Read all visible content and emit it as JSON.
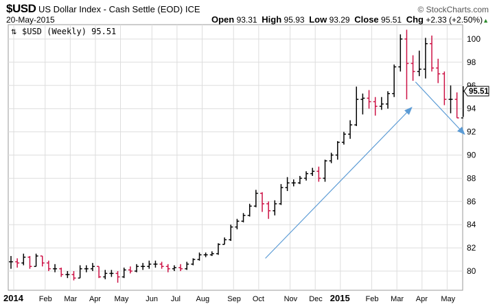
{
  "header": {
    "symbol": "$USD",
    "name": "US Dollar Index - Cash Settle (EOD) ICE",
    "logo": "© StockCharts.com",
    "date": "20-May-2015",
    "open_label": "Open",
    "open": "93.31",
    "high_label": "High",
    "high": "95.93",
    "low_label": "Low",
    "low": "93.29",
    "close_label": "Close",
    "close": "95.51",
    "chg_label": "Chg",
    "chg": "+2.33 (+2.50%)",
    "chg_arrow": "▲"
  },
  "chart_data": {
    "type": "ohlc-bar",
    "legend": "$USD (Weekly) 95.51",
    "last_price_label": "95.51",
    "ylim": [
      79,
      101
    ],
    "yticks": [
      80,
      82,
      84,
      86,
      88,
      90,
      92,
      94,
      96,
      98,
      100
    ],
    "xtick_labels": [
      "2014",
      "Feb",
      "Mar",
      "Apr",
      "May",
      "Jun",
      "Jul",
      "Aug",
      "Sep",
      "Oct",
      "Nov",
      "Dec",
      "2015",
      "Feb",
      "Mar",
      "Apr",
      "May"
    ],
    "xtick_weeks": [
      0,
      5,
      9,
      13,
      17,
      22,
      26,
      30,
      35,
      39,
      44,
      48,
      52,
      57,
      61,
      65,
      69
    ],
    "grid": true,
    "colors": {
      "up": "#000000",
      "down": "#cc1144",
      "arrow": "#5b9bd5",
      "grid": "#dddddd"
    },
    "close": [
      80.8,
      80.7,
      81.2,
      80.4,
      81.3,
      80.7,
      80.2,
      80.2,
      79.7,
      79.7,
      79.4,
      80.2,
      80.2,
      80.4,
      79.5,
      79.8,
      79.8,
      79.5,
      80.1,
      80.0,
      80.4,
      80.4,
      80.6,
      80.6,
      80.4,
      80.2,
      80.3,
      80.2,
      80.6,
      81.0,
      81.4,
      81.4,
      81.5,
      82.3,
      82.7,
      83.8,
      84.3,
      84.8,
      85.6,
      86.7,
      85.8,
      85.2,
      85.8,
      87.2,
      87.6,
      87.6,
      88.0,
      88.4,
      88.6,
      88.0,
      89.5,
      90.0,
      91.1,
      91.8,
      92.6,
      94.8,
      94.9,
      94.6,
      94.2,
      94.4,
      95.3,
      97.6,
      100.0,
      97.9,
      97.2,
      97.4,
      99.6,
      97.5,
      97.0,
      94.8,
      94.8,
      93.2,
      95.51
    ],
    "high": [
      81.3,
      81.1,
      81.5,
      81.3,
      81.5,
      81.3,
      80.9,
      80.6,
      80.3,
      80.0,
      80.0,
      80.5,
      80.5,
      80.7,
      80.4,
      80.1,
      80.1,
      80.0,
      80.3,
      80.4,
      80.6,
      80.7,
      80.9,
      80.9,
      80.8,
      80.6,
      80.5,
      80.6,
      80.8,
      81.1,
      81.6,
      81.6,
      81.7,
      82.4,
      82.9,
      84.0,
      84.5,
      85.0,
      85.8,
      87.0,
      86.8,
      86.0,
      86.1,
      87.5,
      88.1,
      87.9,
      88.2,
      88.6,
      88.9,
      89.0,
      89.6,
      90.2,
      91.2,
      92.0,
      93.0,
      95.9,
      95.3,
      95.6,
      95.0,
      95.0,
      95.5,
      97.8,
      100.4,
      100.8,
      98.6,
      99.0,
      100.1,
      100.3,
      98.3,
      97.2,
      96.0,
      95.4,
      95.93
    ],
    "low": [
      80.2,
      80.3,
      80.5,
      80.2,
      80.4,
      80.4,
      80.0,
      79.9,
      79.5,
      79.4,
      79.2,
      79.4,
      79.9,
      80.0,
      79.4,
      79.3,
      79.5,
      79.0,
      79.4,
      79.8,
      79.9,
      80.1,
      80.2,
      80.3,
      80.2,
      79.9,
      80.0,
      80.0,
      80.1,
      80.5,
      80.9,
      81.2,
      81.3,
      81.4,
      82.3,
      82.6,
      83.6,
      84.2,
      84.7,
      85.5,
      85.1,
      84.5,
      84.8,
      85.7,
      86.9,
      87.3,
      87.5,
      87.8,
      88.2,
      87.7,
      87.7,
      89.3,
      89.6,
      90.9,
      91.4,
      92.5,
      93.5,
      94.0,
      93.4,
      93.9,
      94.0,
      95.0,
      97.2,
      94.8,
      96.4,
      96.8,
      96.6,
      97.2,
      96.2,
      94.3,
      93.6,
      93.2,
      93.29
    ],
    "arrows": [
      {
        "from": {
          "week": 40.5,
          "price": 81.1
        },
        "to": {
          "week": 63.8,
          "price": 94.1
        }
      },
      {
        "from": {
          "week": 64.4,
          "price": 96.3
        },
        "to": {
          "week": 72.2,
          "price": 91.8
        }
      }
    ]
  }
}
